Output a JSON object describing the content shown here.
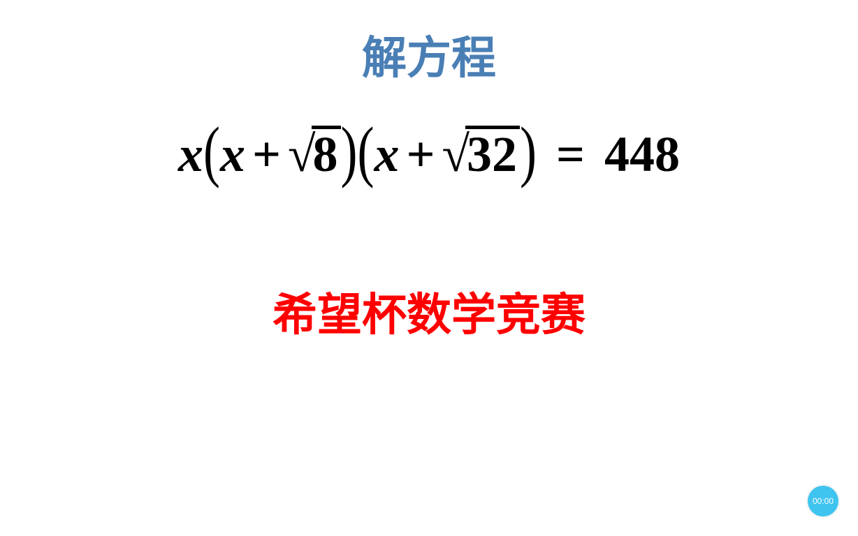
{
  "title": {
    "text": "解方程",
    "color": "#4a7fb5",
    "fontsize": 64
  },
  "equation": {
    "text_color": "#000000",
    "fontsize": 72,
    "var": "x",
    "plus": "+",
    "equals": "=",
    "radical_symbol": "√",
    "radicand1": "8",
    "radicand2": "32",
    "rhs": "448",
    "paren_open": "(",
    "paren_close": ")"
  },
  "subtitle": {
    "text": "希望杯数学竞赛",
    "color": "#ff0000",
    "fontsize": 64
  },
  "timer": {
    "text": "00:00",
    "bg_color": "#3fc4f0",
    "text_color": "#ffffff"
  },
  "background_color": "#ffffff"
}
